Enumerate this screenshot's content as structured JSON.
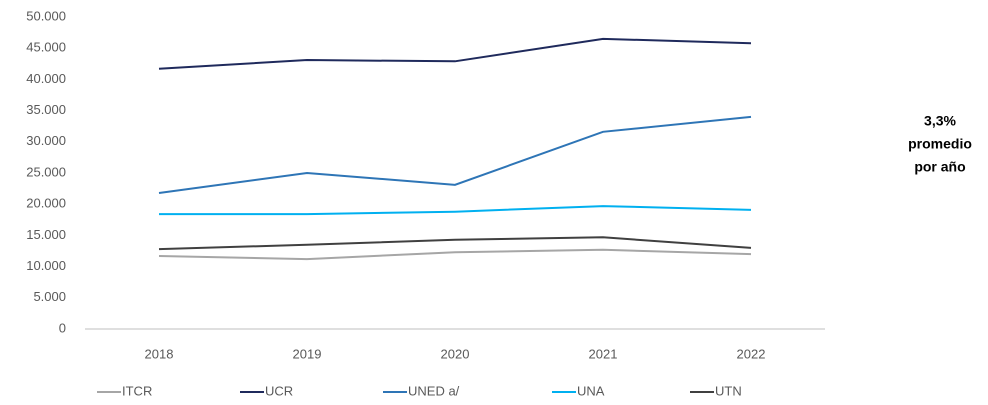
{
  "chart_data": {
    "type": "line",
    "categories": [
      "2018",
      "2019",
      "2020",
      "2021",
      "2022"
    ],
    "series": [
      {
        "name": "ITCR",
        "color": "#a6a6a6",
        "values": [
          11700,
          11200,
          12300,
          12700,
          12000
        ]
      },
      {
        "name": "UCR",
        "color": "#1f2a5c",
        "values": [
          41700,
          43100,
          42900,
          46500,
          45800
        ]
      },
      {
        "name": "UNED a/",
        "color": "#2e75b6",
        "values": [
          21800,
          25000,
          23100,
          31600,
          34000
        ]
      },
      {
        "name": "UNA",
        "color": "#00b0f0",
        "values": [
          18400,
          18400,
          18800,
          19700,
          19100
        ]
      },
      {
        "name": "UTN",
        "color": "#404040",
        "values": [
          12800,
          13500,
          14300,
          14700,
          13000
        ]
      }
    ],
    "ylim": [
      0,
      50000
    ],
    "yticks": [
      0,
      {
        "value": 5000,
        "label": "5.000"
      },
      {
        "value": 10000,
        "label": "10.000"
      },
      {
        "value": 15000,
        "label": "15.000"
      },
      {
        "value": 20000,
        "label": "20.000"
      },
      {
        "value": 25000,
        "label": "25.000"
      },
      {
        "value": 30000,
        "label": "30.000"
      },
      {
        "value": 35000,
        "label": "35.000"
      },
      {
        "value": 40000,
        "label": "40.000"
      },
      {
        "value": 45000,
        "label": "45.000"
      },
      {
        "value": 50000,
        "label": "50.000"
      }
    ],
    "grid": false,
    "legend": "bottom",
    "annotation": [
      "3,3%",
      "promedio",
      "por año"
    ]
  }
}
